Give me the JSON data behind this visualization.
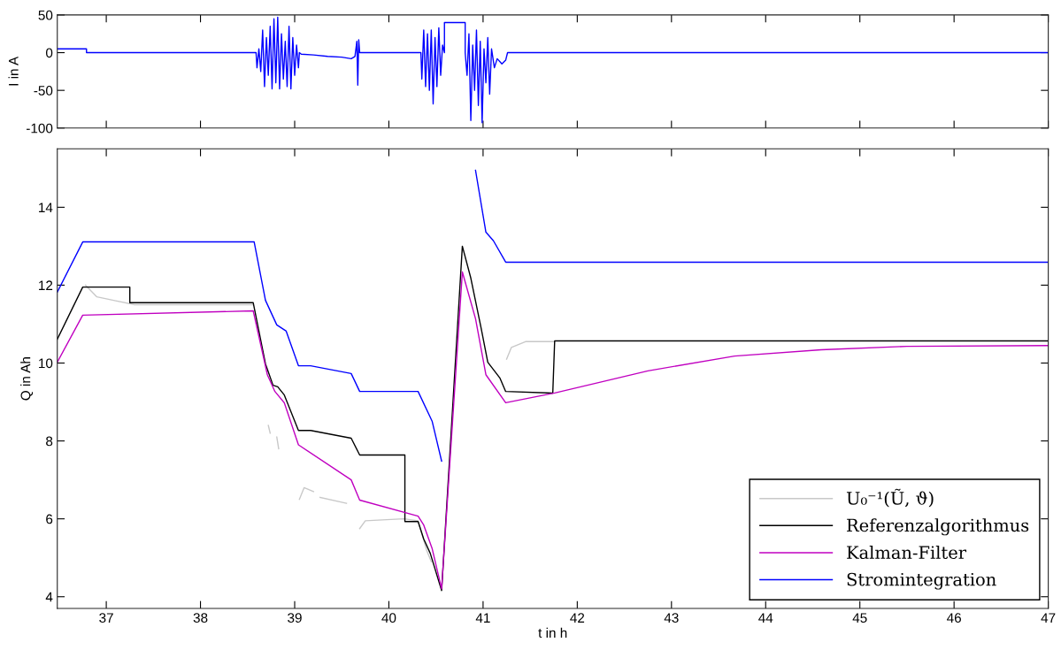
{
  "chart_data": [
    {
      "type": "line",
      "ylabel": "I in A",
      "xlim": [
        36.48,
        47
      ],
      "ylim": [
        -100,
        50
      ],
      "xticks": [
        37,
        38,
        39,
        40,
        41,
        42,
        43,
        44,
        45,
        46,
        47
      ],
      "yticks": [
        -100,
        -50,
        0,
        50
      ],
      "tick_labels": "y",
      "grid": false,
      "legend": false,
      "series": [
        {
          "color": "#0000ff",
          "x": [
            36.48,
            36.79,
            36.79,
            38.59,
            38.6,
            38.62,
            38.64,
            38.66,
            38.68,
            38.7,
            38.72,
            38.74,
            38.76,
            38.78,
            38.8,
            38.82,
            38.84,
            38.86,
            38.88,
            38.9,
            38.92,
            38.94,
            38.96,
            38.98,
            39.0,
            39.02,
            39.04,
            39.05,
            39.07,
            39.2,
            39.35,
            39.5,
            39.6,
            39.64,
            39.66,
            39.67,
            39.68,
            39.69,
            40.34,
            40.35,
            40.37,
            40.39,
            40.41,
            40.43,
            40.45,
            40.47,
            40.49,
            40.51,
            40.53,
            40.55,
            40.57,
            40.59,
            40.59,
            40.81,
            40.81,
            40.83,
            40.85,
            40.87,
            40.89,
            40.91,
            40.93,
            40.95,
            40.97,
            40.99,
            41.01,
            41.03,
            41.05,
            41.07,
            41.09,
            41.12,
            41.15,
            41.2,
            41.24,
            41.26,
            47
          ],
          "values": [
            5,
            5,
            0,
            0,
            -20,
            5,
            -25,
            30,
            -45,
            20,
            -30,
            35,
            -48,
            45,
            -40,
            47,
            -48,
            25,
            -35,
            15,
            -45,
            35,
            -48,
            20,
            -30,
            10,
            -20,
            0,
            -2,
            -3,
            -5,
            -6,
            -8,
            -5,
            15,
            -43,
            17,
            0,
            0,
            -35,
            30,
            -45,
            25,
            -50,
            30,
            -68,
            20,
            -45,
            33,
            -30,
            10,
            0,
            40,
            40,
            0,
            -30,
            25,
            -90,
            10,
            -50,
            30,
            -70,
            15,
            -93,
            5,
            -40,
            20,
            -55,
            5,
            -20,
            -8,
            -15,
            -10,
            0,
            0
          ]
        }
      ]
    },
    {
      "type": "line",
      "xlabel": "t in h",
      "ylabel": "Q in Ah",
      "xlim": [
        36.48,
        47
      ],
      "ylim": [
        3.7,
        15.5
      ],
      "xticks": [
        37,
        38,
        39,
        40,
        41,
        42,
        43,
        44,
        45,
        46,
        47
      ],
      "yticks": [
        4,
        6,
        8,
        10,
        12,
        14
      ],
      "grid": false,
      "legend": "bottom right",
      "series": [
        {
          "name": "U₀⁻¹(Ũ, ϑ)",
          "color": "#c8c8c8",
          "x": [
            36.78,
            36.9,
            37.1,
            37.3,
            38.56,
            38.6,
            38.72,
            38.74,
            38.77,
            38.81,
            38.83,
            38.95,
            39.05,
            39.1,
            39.2,
            39.23,
            39.27,
            39.55,
            39.62,
            39.69,
            39.75,
            40.16,
            40.31,
            40.4,
            40.45,
            40.9,
            41.25,
            41.3,
            41.45,
            47
          ],
          "values": [
            12.0,
            11.7,
            11.6,
            11.5,
            11.5,
            null,
            8.4,
            8.2,
            null,
            8.1,
            7.8,
            null,
            6.5,
            6.8,
            6.7,
            null,
            6.55,
            6.4,
            null,
            5.75,
            5.95,
            6.0,
            5.95,
            5.2,
            4.9,
            null,
            10.1,
            10.4,
            10.55,
            10.55
          ]
        },
        {
          "name": "Referenzalgorithmus",
          "color": "#000000",
          "x": [
            36.48,
            36.75,
            37.25,
            37.25,
            38.56,
            38.69,
            38.77,
            38.82,
            38.89,
            39.04,
            39.17,
            39.6,
            39.69,
            40.17,
            40.17,
            40.31,
            40.37,
            40.44,
            40.56,
            40.78,
            40.87,
            40.98,
            41.05,
            41.18,
            41.24,
            41.74,
            41.76,
            47
          ],
          "values": [
            10.61,
            11.95,
            11.95,
            11.55,
            11.55,
            9.98,
            9.43,
            9.39,
            9.18,
            8.27,
            8.27,
            8.07,
            7.64,
            7.64,
            5.93,
            5.93,
            5.48,
            5.11,
            4.16,
            13.0,
            12.18,
            10.89,
            10.02,
            9.61,
            9.27,
            9.23,
            10.57,
            10.57
          ]
        },
        {
          "name": "Kalman-Filter",
          "color": "#c000c0",
          "x": [
            36.48,
            36.75,
            38.56,
            38.71,
            38.79,
            38.89,
            39.04,
            39.6,
            39.69,
            40.31,
            40.37,
            40.46,
            40.56,
            40.78,
            40.92,
            41.03,
            41.24,
            41.76,
            42.75,
            43.67,
            44.59,
            45.5,
            47
          ],
          "values": [
            10.02,
            11.23,
            11.34,
            9.7,
            9.27,
            8.98,
            7.9,
            7.0,
            6.48,
            6.07,
            5.84,
            5.23,
            4.2,
            12.34,
            11.14,
            9.7,
            8.98,
            9.23,
            9.8,
            10.18,
            10.34,
            10.43,
            10.45
          ]
        },
        {
          "name": "Stromintegration",
          "color": "#0000ff",
          "x": [
            36.48,
            36.75,
            38.57,
            38.69,
            38.81,
            38.91,
            39.04,
            39.17,
            39.6,
            39.69,
            40.31,
            40.46,
            40.56,
            40.77,
            40.87,
            40.92,
            41.03,
            41.11,
            41.24,
            47
          ],
          "values": [
            11.82,
            13.11,
            13.11,
            11.61,
            10.98,
            10.82,
            9.93,
            9.93,
            9.73,
            9.27,
            9.27,
            8.5,
            7.48,
            null,
            null,
            14.95,
            13.36,
            13.14,
            12.59,
            12.59
          ]
        }
      ]
    }
  ]
}
